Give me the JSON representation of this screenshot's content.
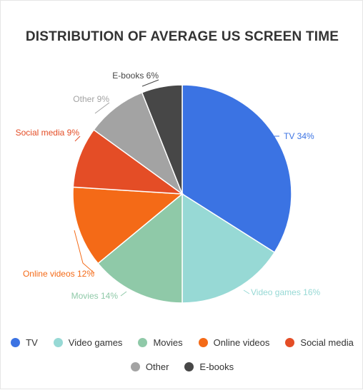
{
  "chart_data": {
    "type": "pie",
    "title": "DISTRIBUTION OF AVERAGE US SCREEN TIME",
    "categories": [
      "TV",
      "Video games",
      "Movies",
      "Online videos",
      "Social media",
      "Other",
      "E-books"
    ],
    "values": [
      34,
      16,
      14,
      12,
      9,
      9,
      6
    ],
    "labels": [
      "TV 34%",
      "Video games 16%",
      "Movies 14%",
      "Online videos 12%",
      "Social media 9%",
      "Other 9%",
      "E-books 6%"
    ],
    "colors": [
      "#3b73e3",
      "#97d9d5",
      "#8fc9a8",
      "#f46a17",
      "#e44d26",
      "#a3a3a3",
      "#474747"
    ],
    "legend_position": "bottom"
  }
}
